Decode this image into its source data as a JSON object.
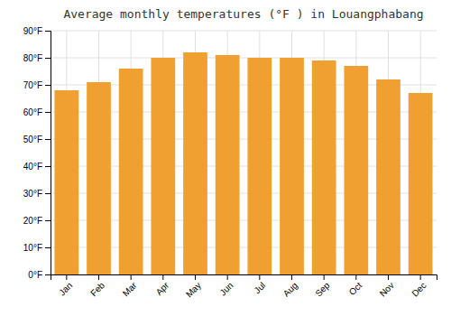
{
  "chart_data": {
    "type": "bar",
    "title": "Average monthly temperatures (°F ) in Louangphabang",
    "categories": [
      "Jan",
      "Feb",
      "Mar",
      "Apr",
      "May",
      "Jun",
      "Jul",
      "Aug",
      "Sep",
      "Oct",
      "Nov",
      "Dec"
    ],
    "values": [
      68,
      71,
      76,
      80,
      82,
      81,
      80,
      80,
      79,
      77,
      72,
      67
    ],
    "color": "#F0A030",
    "ylim": [
      0,
      90
    ],
    "yticks": [
      {
        "value": 0,
        "label": "0°F"
      },
      {
        "value": 10,
        "label": "10°F"
      },
      {
        "value": 20,
        "label": "20°F"
      },
      {
        "value": 30,
        "label": "30°F"
      },
      {
        "value": 40,
        "label": "40°F"
      },
      {
        "value": 50,
        "label": "50°F"
      },
      {
        "value": 60,
        "label": "60°F"
      },
      {
        "value": 70,
        "label": "70°F"
      },
      {
        "value": 80,
        "label": "80°F"
      },
      {
        "value": 90,
        "label": "90°F"
      }
    ],
    "grid": true
  }
}
